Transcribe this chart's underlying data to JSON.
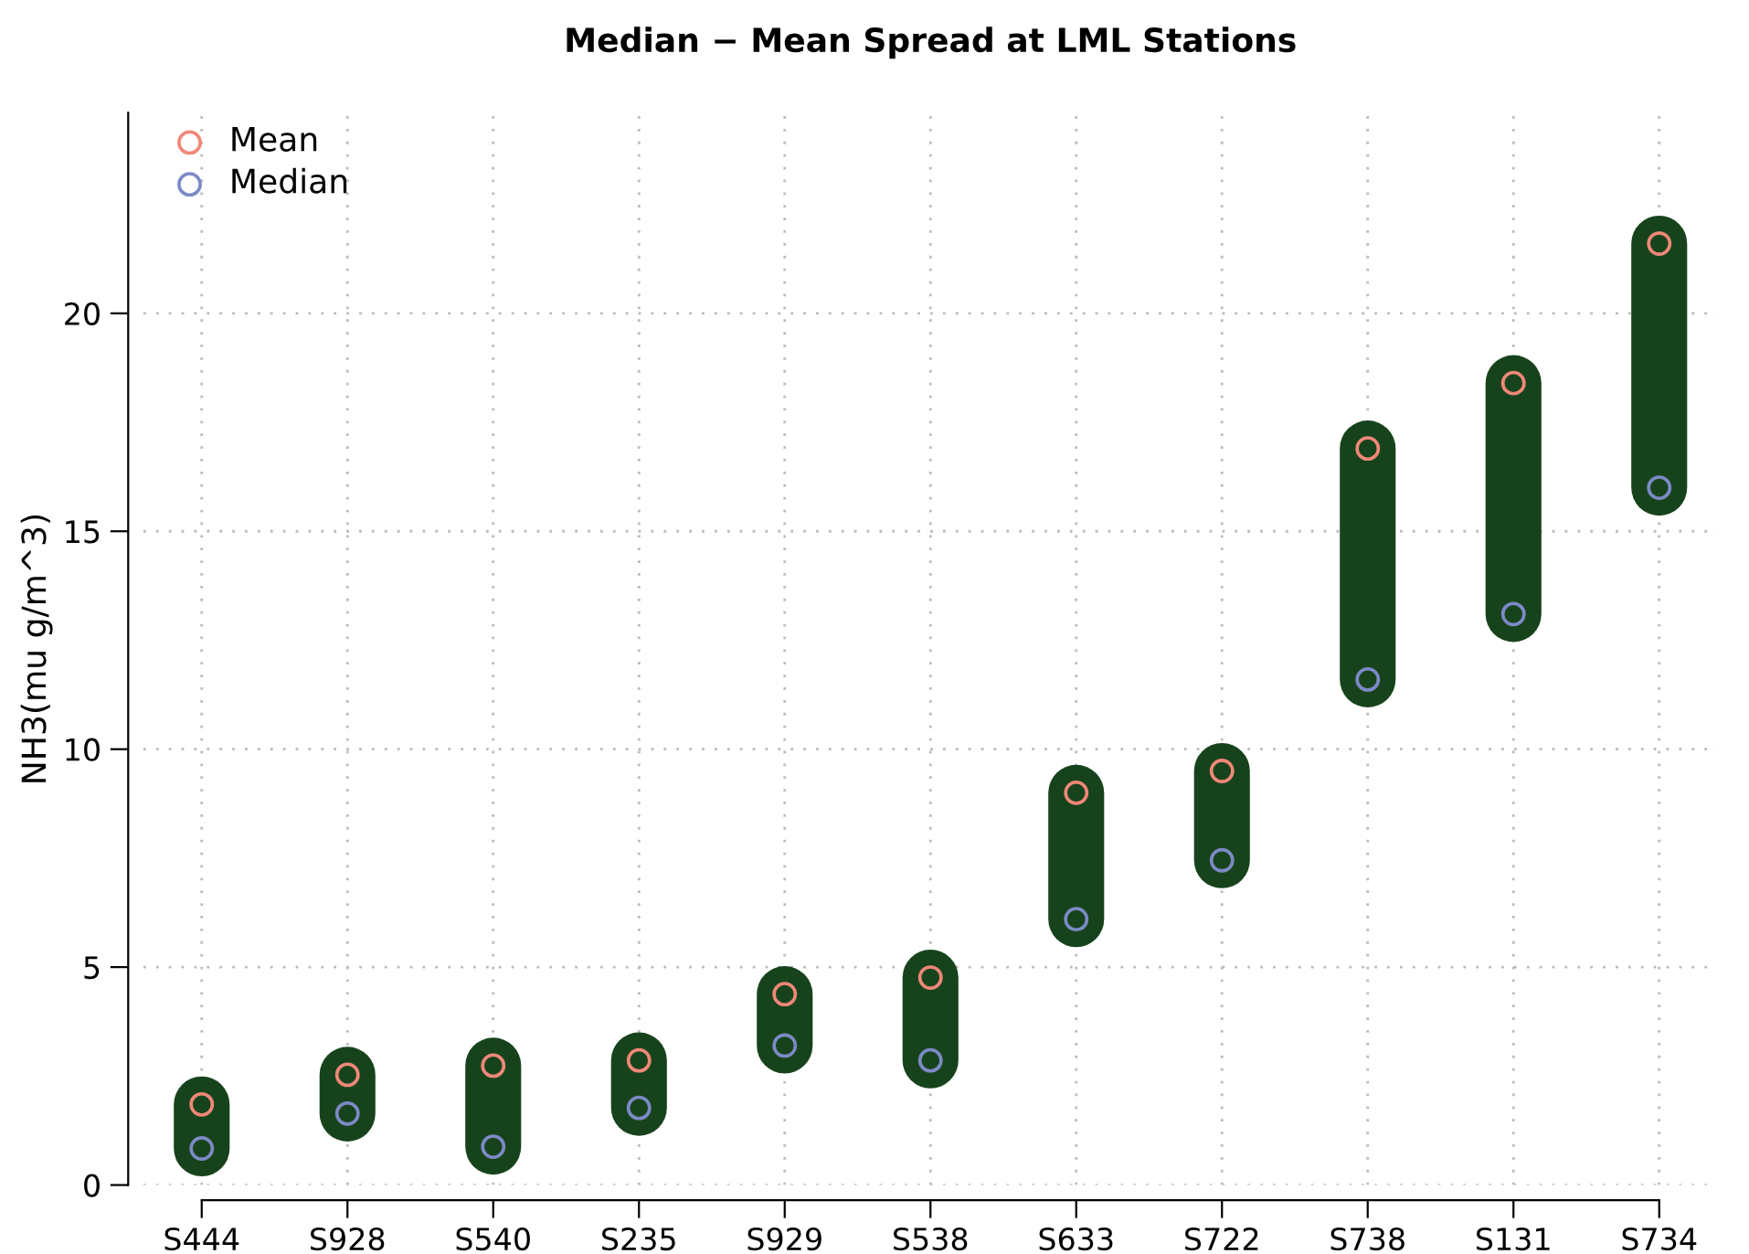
{
  "chart_data": {
    "type": "scatter",
    "title": "Median − Mean Spread at LML Stations",
    "ylabel": "NH3(mu g/m^3)",
    "categories": [
      "S444",
      "S928",
      "S540",
      "S235",
      "S929",
      "S538",
      "S633",
      "S722",
      "S738",
      "S131",
      "S734"
    ],
    "series": [
      {
        "type": "bar",
        "color": "#17431c",
        "base": [
          0.84,
          1.64,
          0.88,
          1.77,
          3.2,
          2.86,
          6.1,
          7.45,
          11.6,
          13.1,
          16.0
        ],
        "values": [
          1.01,
          0.89,
          1.86,
          1.09,
          1.18,
          1.9,
          2.9,
          2.05,
          5.3,
          5.3,
          5.6
        ]
      },
      {
        "name": "Mean",
        "color": "#f08878",
        "values": [
          1.85,
          2.53,
          2.74,
          2.86,
          4.38,
          4.76,
          9.0,
          9.5,
          16.9,
          18.4,
          21.6
        ]
      },
      {
        "name": "Median",
        "color": "#7d8ac6",
        "values": [
          0.84,
          1.64,
          0.88,
          1.77,
          3.2,
          2.86,
          6.1,
          7.45,
          11.6,
          13.1,
          16.0
        ]
      }
    ],
    "ylim": [
      0,
      24.6
    ],
    "yticks": [
      0,
      5,
      10,
      15,
      20
    ],
    "grid": true,
    "legend": "top left",
    "marker": "circle"
  }
}
